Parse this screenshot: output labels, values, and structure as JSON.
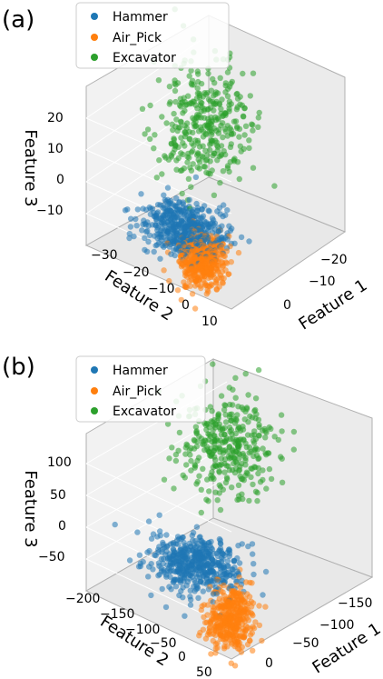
{
  "colors": {
    "hammer": "#1f77b4",
    "air_pick": "#ff7f0e",
    "excavator": "#2ca02c",
    "pane": "#f2f2f2",
    "grid": "#d0d0d0",
    "axis": "#b0b0b0"
  },
  "chart_data": [
    {
      "panel_label": "(a)",
      "type": "scatter",
      "projection": "3d",
      "xlabel": "Feature 1",
      "ylabel": "Feature 2",
      "zlabel": "Feature 3",
      "xticks": [
        "−20",
        "−10",
        "0"
      ],
      "yticks": [
        "−30",
        "−20",
        "−10",
        "0",
        "10"
      ],
      "zticks": [
        "20",
        "10",
        "0",
        "−10"
      ],
      "legend": [
        "Hammer",
        "Air_Pick",
        "Excavator"
      ],
      "legend_position": "top-left",
      "series": [
        {
          "name": "Hammer",
          "color_key": "hammer",
          "center": [
            -3,
            -15,
            -10
          ],
          "spread": [
            3.5,
            6,
            2.5
          ],
          "count": 500
        },
        {
          "name": "Air_Pick",
          "color_key": "air_pick",
          "center": [
            5,
            -2,
            -10
          ],
          "spread": [
            3,
            3,
            3
          ],
          "count": 400
        },
        {
          "name": "Excavator",
          "color_key": "excavator",
          "center": [
            -16,
            -20,
            10
          ],
          "spread": [
            5,
            6,
            7
          ],
          "count": 350
        }
      ]
    },
    {
      "panel_label": "(b)",
      "type": "scatter",
      "projection": "3d",
      "xlabel": "Feature 1",
      "ylabel": "Feature 2",
      "zlabel": "Feature 3",
      "xticks": [
        "−150",
        "−100",
        "−50",
        "0"
      ],
      "yticks": [
        "−200",
        "−150",
        "−100",
        "−50",
        "0",
        "50"
      ],
      "zticks": [
        "100",
        "50",
        "0",
        "−50"
      ],
      "legend": [
        "Hammer",
        "Air_Pick",
        "Excavator"
      ],
      "legend_position": "top-left",
      "series": [
        {
          "name": "Hammer",
          "color_key": "hammer",
          "center": [
            -40,
            -110,
            -50
          ],
          "spread": [
            20,
            35,
            10
          ],
          "count": 500
        },
        {
          "name": "Air_Pick",
          "color_key": "air_pick",
          "center": [
            10,
            20,
            -55
          ],
          "spread": [
            12,
            15,
            20
          ],
          "count": 400
        },
        {
          "name": "Excavator",
          "color_key": "excavator",
          "center": [
            -120,
            -150,
            50
          ],
          "spread": [
            25,
            35,
            30
          ],
          "count": 350
        }
      ]
    }
  ]
}
